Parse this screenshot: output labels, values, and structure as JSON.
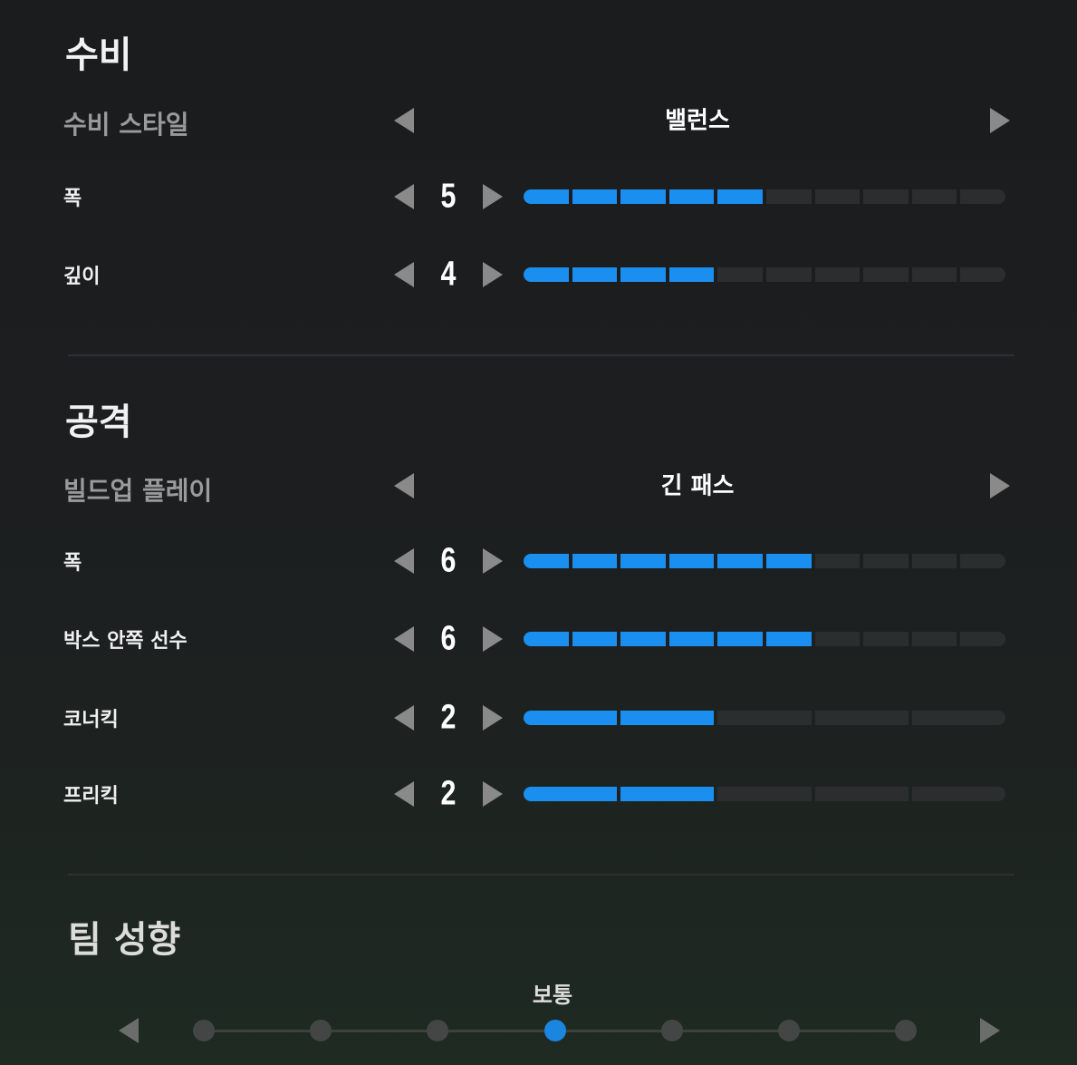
{
  "colors": {
    "accent": "#1a8fef",
    "inactive": "#2c2d2f"
  },
  "defense": {
    "title": "수비",
    "style": {
      "label": "수비 스타일",
      "value": "밸런스"
    },
    "sliders": [
      {
        "label": "폭",
        "value": 5,
        "max": 10
      },
      {
        "label": "깊이",
        "value": 4,
        "max": 10
      }
    ]
  },
  "attack": {
    "title": "공격",
    "style": {
      "label": "빌드업 플레이",
      "value": "긴 패스"
    },
    "sliders": [
      {
        "label": "폭",
        "value": 6,
        "max": 10
      },
      {
        "label": "박스 안쪽 선수",
        "value": 6,
        "max": 10
      },
      {
        "label": "코너킥",
        "value": 2,
        "max": 5
      },
      {
        "label": "프리킥",
        "value": 2,
        "max": 5
      }
    ]
  },
  "team": {
    "title": "팀 성향",
    "value": "보통",
    "position": 4,
    "steps": 7
  }
}
